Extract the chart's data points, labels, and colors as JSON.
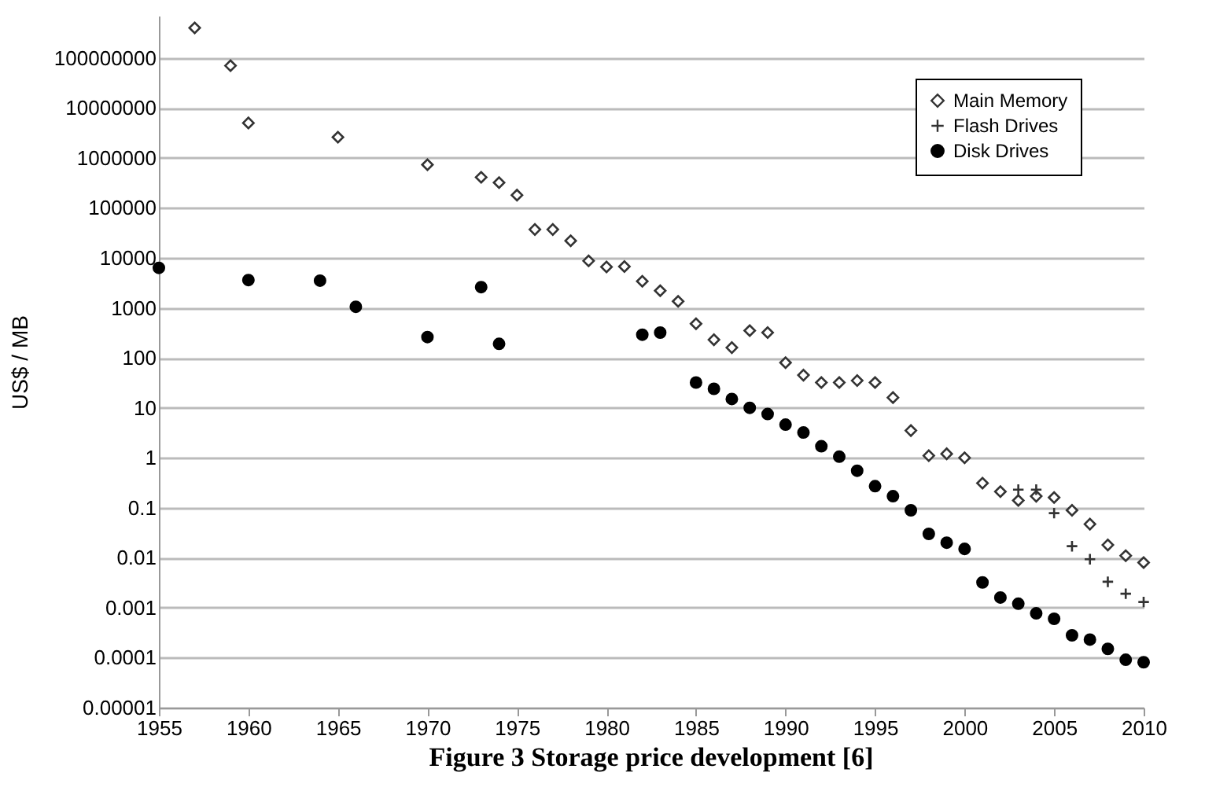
{
  "chart_data": {
    "type": "scatter",
    "title": "Figure 3 Storage price development [6]",
    "ylabel": "US$ / MB",
    "log": "y",
    "grid": "y",
    "legend": "top right",
    "xlim": [
      1955,
      2010
    ],
    "xticks": [
      1955,
      1960,
      1965,
      1970,
      1975,
      1980,
      1985,
      1990,
      1995,
      2000,
      2005,
      2010
    ],
    "ylim": [
      1e-05,
      700000000
    ],
    "yticks": [
      {
        "value": 1e-05,
        "label": "0.00001"
      },
      0.0001,
      0.001,
      0.01,
      0.1,
      1,
      10,
      100,
      1000,
      10000,
      100000,
      1000000,
      10000000,
      100000000
    ],
    "series": [
      {
        "name": "Main Memory",
        "color": "#333333",
        "marker": "diamond",
        "x": [
          1957,
          1959,
          1960,
          1965,
          1970,
          1973,
          1974,
          1975,
          1976,
          1977,
          1978,
          1979,
          1980,
          1981,
          1982,
          1983,
          1984,
          1985,
          1986,
          1987,
          1988,
          1989,
          1990,
          1991,
          1992,
          1993,
          1994,
          1995,
          1996,
          1997,
          1998,
          1999,
          2000,
          2001,
          2002,
          2003,
          2004,
          2005,
          2006,
          2007,
          2008,
          2009,
          2010
        ],
        "values": [
          400000000,
          70000000,
          5000000,
          2600000,
          730000,
          410000,
          320000,
          180000,
          37000,
          37000,
          22000,
          8700,
          6600,
          6700,
          3400,
          2200,
          1350,
          480,
          230,
          160,
          350,
          320,
          80,
          45,
          32,
          32,
          35,
          32,
          16,
          3.5,
          1.1,
          1.2,
          1.0,
          0.31,
          0.21,
          0.14,
          0.17,
          0.16,
          0.089,
          0.047,
          0.018,
          0.011,
          0.008
        ]
      },
      {
        "name": "Flash Drives",
        "color": "#333333",
        "marker": "cross",
        "x": [
          2003,
          2004,
          2005,
          2006,
          2007,
          2008,
          2009,
          2010
        ],
        "values": [
          0.23,
          0.23,
          0.078,
          0.017,
          0.0093,
          0.0033,
          0.0019,
          0.0013
        ]
      },
      {
        "name": "Disk Drives",
        "color": "#000000",
        "marker": "circle",
        "x": [
          1955,
          1960,
          1964,
          1966,
          1970,
          1973,
          1974,
          1982,
          1983,
          1985,
          1986,
          1987,
          1988,
          1989,
          1990,
          1991,
          1992,
          1993,
          1994,
          1995,
          1996,
          1997,
          1998,
          1999,
          2000,
          2001,
          2002,
          2003,
          2004,
          2005,
          2006,
          2007,
          2008,
          2009,
          2010
        ],
        "values": [
          6300,
          3600,
          3500,
          1050,
          260,
          2600,
          190,
          290,
          320,
          32,
          24,
          15,
          10,
          7.5,
          4.6,
          3.2,
          1.7,
          1.05,
          0.55,
          0.27,
          0.17,
          0.089,
          0.03,
          0.02,
          0.015,
          0.0032,
          0.0016,
          0.0012,
          0.00077,
          0.0006,
          0.00028,
          0.00023,
          0.00015,
          9.1e-05,
          8.1e-05
        ]
      }
    ]
  }
}
